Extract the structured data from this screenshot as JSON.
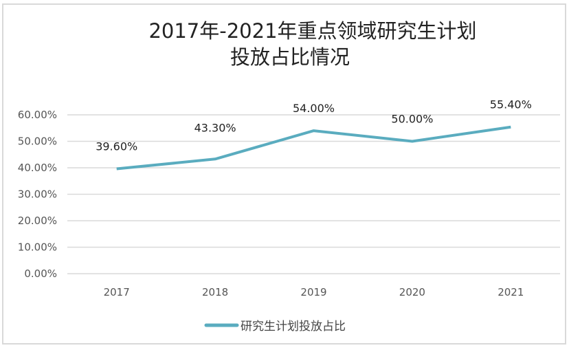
{
  "chart_data": {
    "type": "line",
    "title": [
      "2017年-2021年重点领域研究生计划",
      "投放占比情况"
    ],
    "categories": [
      "2017",
      "2018",
      "2019",
      "2020",
      "2021"
    ],
    "series": [
      {
        "name": "研究生计划投放占比",
        "values": [
          39.6,
          43.3,
          54.0,
          50.0,
          55.4
        ],
        "color": "#5aacbf"
      }
    ],
    "data_labels": [
      "39.60%",
      "43.30%",
      "54.00%",
      "50.00%",
      "55.40%"
    ],
    "y_ticks": [
      "0.00%",
      "10.00%",
      "20.00%",
      "30.00%",
      "40.00%",
      "50.00%",
      "60.00%"
    ],
    "ylim": [
      0,
      60
    ],
    "grid": true,
    "legend": "bottom",
    "xlabel": "",
    "ylabel": ""
  }
}
